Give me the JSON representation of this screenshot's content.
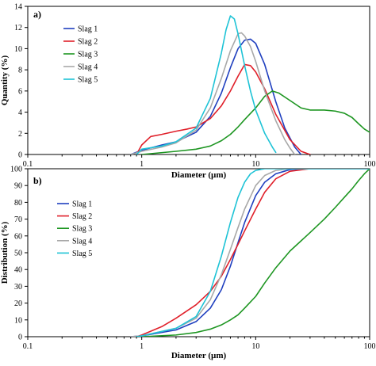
{
  "chart_data": [
    {
      "type": "line",
      "panel_label": "a)",
      "xlabel": "Diameter (µm)",
      "ylabel": "Quantity (%)",
      "x_scale": "log",
      "xlim": [
        0.1,
        100
      ],
      "ylim": [
        0,
        14
      ],
      "x_ticks": [
        "0.1",
        "1",
        "10",
        "100"
      ],
      "y_ticks": [
        "0",
        "2",
        "4",
        "6",
        "8",
        "10",
        "12",
        "14"
      ],
      "grid": false,
      "legend_position": "top-left",
      "series": [
        {
          "name": "Slag 1",
          "color": "#1f3fbf",
          "points": [
            [
              0.8,
              0
            ],
            [
              1,
              0.4
            ],
            [
              1.5,
              0.9
            ],
            [
              2,
              1.2
            ],
            [
              3,
              2.1
            ],
            [
              4,
              3.6
            ],
            [
              5,
              5.8
            ],
            [
              6,
              8.2
            ],
            [
              7,
              10
            ],
            [
              8,
              10.8
            ],
            [
              9,
              10.9
            ],
            [
              10,
              10.5
            ],
            [
              12,
              8.5
            ],
            [
              15,
              5
            ],
            [
              18,
              2.5
            ],
            [
              22,
              0.7
            ],
            [
              25,
              0
            ]
          ]
        },
        {
          "name": "Slag 2",
          "color": "#e0202a",
          "points": [
            [
              0.9,
              0
            ],
            [
              1,
              0.9
            ],
            [
              1.2,
              1.7
            ],
            [
              1.5,
              1.9
            ],
            [
              2,
              2.2
            ],
            [
              2.5,
              2.4
            ],
            [
              3,
              2.6
            ],
            [
              4,
              3.4
            ],
            [
              5,
              4.6
            ],
            [
              6,
              6
            ],
            [
              7,
              7.4
            ],
            [
              8,
              8.5
            ],
            [
              9,
              8.4
            ],
            [
              10,
              7.8
            ],
            [
              12,
              6.2
            ],
            [
              15,
              3.8
            ],
            [
              20,
              1.4
            ],
            [
              25,
              0.3
            ],
            [
              30,
              0
            ]
          ]
        },
        {
          "name": "Slag 3",
          "color": "#1e9622",
          "points": [
            [
              1,
              0
            ],
            [
              2,
              0.3
            ],
            [
              3,
              0.5
            ],
            [
              4,
              0.8
            ],
            [
              5,
              1.3
            ],
            [
              6,
              1.9
            ],
            [
              7,
              2.6
            ],
            [
              8,
              3.3
            ],
            [
              10,
              4.4
            ],
            [
              12,
              5.5
            ],
            [
              14,
              6
            ],
            [
              16,
              5.8
            ],
            [
              20,
              5.1
            ],
            [
              25,
              4.4
            ],
            [
              30,
              4.2
            ],
            [
              40,
              4.2
            ],
            [
              50,
              4.1
            ],
            [
              60,
              3.9
            ],
            [
              70,
              3.5
            ],
            [
              80,
              2.9
            ],
            [
              90,
              2.4
            ],
            [
              100,
              2.1
            ]
          ]
        },
        {
          "name": "Slag 4",
          "color": "#a8a8a8",
          "points": [
            [
              0.8,
              0
            ],
            [
              1,
              0.3
            ],
            [
              1.5,
              0.7
            ],
            [
              2,
              1.1
            ],
            [
              3,
              2.3
            ],
            [
              4,
              4.4
            ],
            [
              5,
              7.2
            ],
            [
              6,
              9.8
            ],
            [
              7,
              11.4
            ],
            [
              7.5,
              11.5
            ],
            [
              8,
              11.2
            ],
            [
              9,
              10.2
            ],
            [
              10,
              8.8
            ],
            [
              12,
              6
            ],
            [
              15,
              3.2
            ],
            [
              18,
              1.4
            ],
            [
              20,
              0.6
            ],
            [
              22,
              0
            ]
          ]
        },
        {
          "name": "Slag 5",
          "color": "#1ec3d6",
          "points": [
            [
              0.9,
              0
            ],
            [
              1,
              0.5
            ],
            [
              1.5,
              0.8
            ],
            [
              2,
              1.2
            ],
            [
              3,
              2.5
            ],
            [
              4,
              5.3
            ],
            [
              5,
              9.6
            ],
            [
              5.5,
              11.8
            ],
            [
              6,
              13.1
            ],
            [
              6.5,
              12.8
            ],
            [
              7,
              11.4
            ],
            [
              8,
              8.4
            ],
            [
              9,
              6
            ],
            [
              10,
              4.2
            ],
            [
              12,
              2
            ],
            [
              14,
              0.7
            ],
            [
              15,
              0.2
            ]
          ]
        }
      ]
    },
    {
      "type": "line",
      "panel_label": "b)",
      "xlabel": "Diameter (µm)",
      "ylabel": "Distribution (%)",
      "x_scale": "log",
      "xlim": [
        0.1,
        100
      ],
      "ylim": [
        0,
        100
      ],
      "x_ticks": [
        "0.1",
        "1",
        "10",
        "100"
      ],
      "y_ticks": [
        "0",
        "10",
        "20",
        "30",
        "40",
        "50",
        "60",
        "70",
        "80",
        "90",
        "100"
      ],
      "grid": false,
      "legend_position": "left",
      "series": [
        {
          "name": "Slag 1",
          "color": "#1f3fbf",
          "points": [
            [
              0.8,
              0
            ],
            [
              1,
              0.5
            ],
            [
              2,
              4
            ],
            [
              3,
              9
            ],
            [
              4,
              17
            ],
            [
              5,
              28
            ],
            [
              6,
              42
            ],
            [
              7,
              56
            ],
            [
              8,
              68
            ],
            [
              10,
              84
            ],
            [
              12,
              92
            ],
            [
              15,
              97
            ],
            [
              20,
              99.5
            ],
            [
              30,
              100
            ],
            [
              100,
              100
            ]
          ]
        },
        {
          "name": "Slag 2",
          "color": "#e0202a",
          "points": [
            [
              0.9,
              0
            ],
            [
              1,
              1
            ],
            [
              1.5,
              6
            ],
            [
              2,
              11
            ],
            [
              3,
              19
            ],
            [
              4,
              27
            ],
            [
              5,
              36
            ],
            [
              6,
              46
            ],
            [
              7,
              55
            ],
            [
              8,
              63
            ],
            [
              10,
              76
            ],
            [
              12,
              86
            ],
            [
              15,
              94
            ],
            [
              20,
              98.5
            ],
            [
              30,
              100
            ],
            [
              100,
              100
            ]
          ]
        },
        {
          "name": "Slag 3",
          "color": "#1e9622",
          "points": [
            [
              1,
              0
            ],
            [
              2,
              1
            ],
            [
              3,
              2.5
            ],
            [
              4,
              4.5
            ],
            [
              5,
              7
            ],
            [
              6,
              10
            ],
            [
              7,
              13
            ],
            [
              8,
              17
            ],
            [
              10,
              24
            ],
            [
              12,
              32
            ],
            [
              15,
              41
            ],
            [
              20,
              51
            ],
            [
              30,
              62
            ],
            [
              40,
              70
            ],
            [
              50,
              77
            ],
            [
              60,
              83
            ],
            [
              70,
              88
            ],
            [
              80,
              93
            ],
            [
              90,
              97
            ],
            [
              100,
              100
            ]
          ]
        },
        {
          "name": "Slag 4",
          "color": "#a8a8a8",
          "points": [
            [
              0.8,
              0
            ],
            [
              1,
              0.5
            ],
            [
              2,
              5
            ],
            [
              3,
              11
            ],
            [
              4,
              22
            ],
            [
              5,
              37
            ],
            [
              6,
              52
            ],
            [
              7,
              65
            ],
            [
              8,
              76
            ],
            [
              10,
              90
            ],
            [
              12,
              96
            ],
            [
              15,
              99
            ],
            [
              20,
              100
            ],
            [
              100,
              100
            ]
          ]
        },
        {
          "name": "Slag 5",
          "color": "#1ec3d6",
          "points": [
            [
              0.9,
              0
            ],
            [
              1,
              0.5
            ],
            [
              2,
              5
            ],
            [
              3,
              12
            ],
            [
              4,
              27
            ],
            [
              5,
              48
            ],
            [
              6,
              68
            ],
            [
              7,
              83
            ],
            [
              8,
              92
            ],
            [
              9,
              97
            ],
            [
              10,
              99
            ],
            [
              12,
              100
            ],
            [
              100,
              100
            ]
          ]
        }
      ]
    }
  ]
}
